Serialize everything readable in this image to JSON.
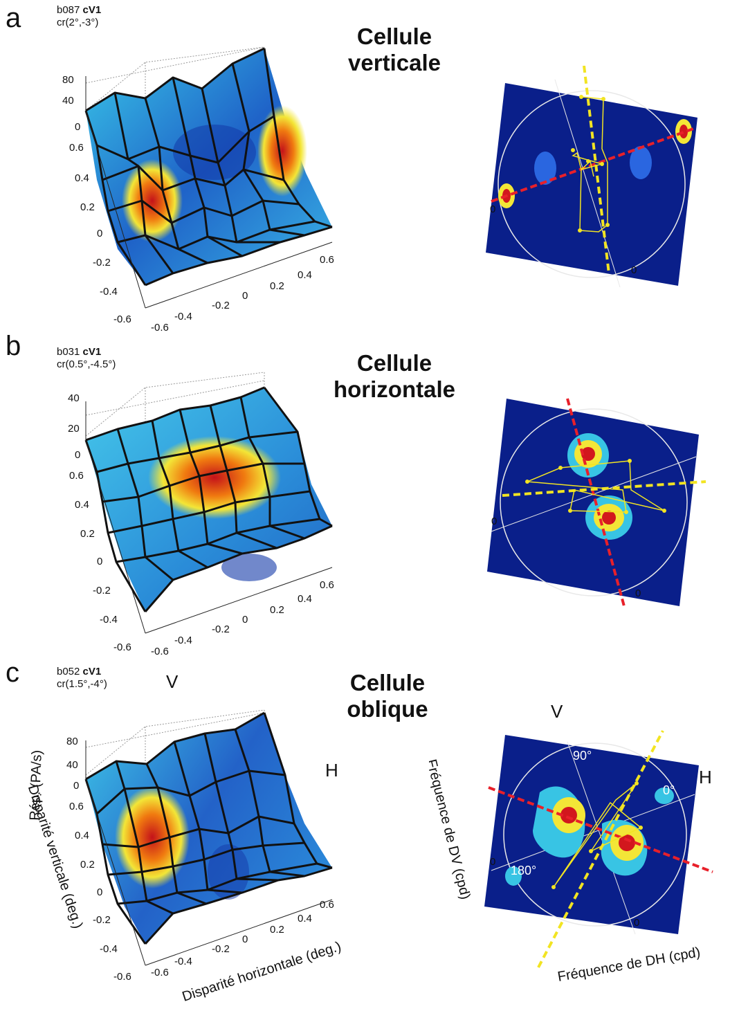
{
  "panels": [
    {
      "letter": "a",
      "cell_code": "b087",
      "cell_area": "cV1",
      "cell_rf": "cr(2°,-3°)",
      "title_line1": "Cellule",
      "title_line2": "verticale",
      "z_ticks": [
        "80",
        "40",
        "0"
      ],
      "y_ticks": [
        "0.6",
        "0.4",
        "0.2",
        "0",
        "-0.2",
        "-0.4",
        "-0.6"
      ],
      "x_ticks": [
        "-0.6",
        "-0.4",
        "-0.2",
        "0",
        "0.2",
        "0.4",
        "0.6"
      ],
      "fourier_zero_x": "0",
      "fourier_zero_y": "0"
    },
    {
      "letter": "b",
      "cell_code": "b031",
      "cell_area": "cV1",
      "cell_rf": "cr(0.5°,-4.5°)",
      "title_line1": "Cellule",
      "title_line2": "horizontale",
      "z_ticks": [
        "40",
        "20",
        "0"
      ],
      "y_ticks": [
        "0.6",
        "0.4",
        "0.2",
        "0",
        "-0.2",
        "-0.4",
        "-0.6"
      ],
      "x_ticks": [
        "-0.6",
        "-0.4",
        "-0.2",
        "0",
        "0.2",
        "0.4",
        "0.6"
      ],
      "fourier_zero_x": "0",
      "fourier_zero_y": "0"
    },
    {
      "letter": "c",
      "cell_code": "b052",
      "cell_area": "cV1",
      "cell_rf": "cr(1.5°,-4°)",
      "title_line1": "Cellule",
      "title_line2": "oblique",
      "z_ticks": [
        "80",
        "40",
        "0"
      ],
      "y_ticks": [
        "0.6",
        "0.4",
        "0.2",
        "0",
        "-0.2",
        "-0.4",
        "-0.6"
      ],
      "x_ticks": [
        "-0.6",
        "-0.4",
        "-0.2",
        "0",
        "0.2",
        "0.4",
        "0.6"
      ],
      "fourier_zero_x": "0",
      "fourier_zero_y": "0",
      "surface_V": "V",
      "surface_H": "H",
      "fourier_V": "V",
      "fourier_H": "H",
      "angle_90": "90°",
      "angle_0": "0°",
      "angle_180": "180°",
      "zlabel": "Rép. (PA/s)",
      "ylabel": "Disparité verticale (deg.)",
      "xlabel": "Disparité horizontale (deg.)",
      "fourier_ylabel": "Fréquence de DV (cpd)",
      "fourier_xlabel": "Fréquence de DH (cpd)"
    }
  ],
  "colors": {
    "fourier_bg": "#0a1f8a",
    "red_axis": "#e8202a",
    "yellow_axis": "#f2e422",
    "mesh": "#111111"
  }
}
